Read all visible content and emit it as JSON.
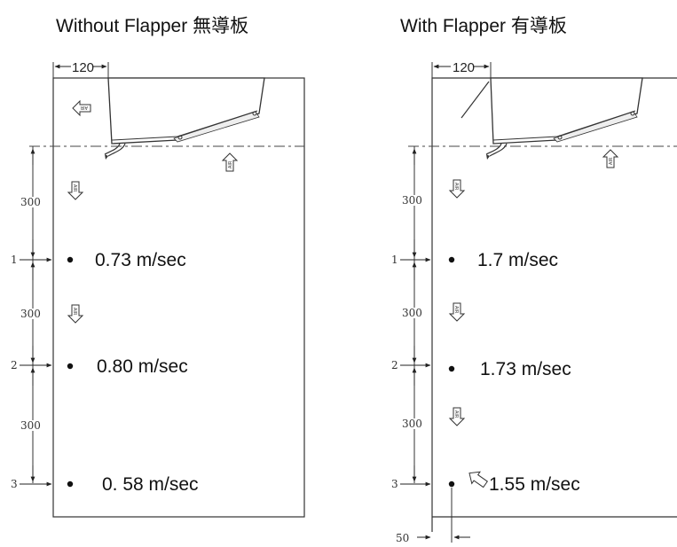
{
  "left": {
    "title": "Without Flapper 無導板",
    "top_dim": "120",
    "spacing_labels": [
      "300",
      "300",
      "300"
    ],
    "point_numbers": [
      "1",
      "2",
      "3"
    ],
    "speeds": [
      "0.73 m/sec",
      "0.80 m/sec",
      "0. 58 m/sec"
    ],
    "arrow_text": "AIR"
  },
  "right": {
    "title": "With Flapper 有導板",
    "top_dim": "120",
    "spacing_labels": [
      "300",
      "300",
      "300"
    ],
    "point_numbers": [
      "1",
      "2",
      "3"
    ],
    "speeds": [
      "1.7 m/sec",
      "1.73 m/sec",
      "1.55 m/sec"
    ],
    "bottom_dim": "50",
    "arrow_text": "AIR"
  }
}
